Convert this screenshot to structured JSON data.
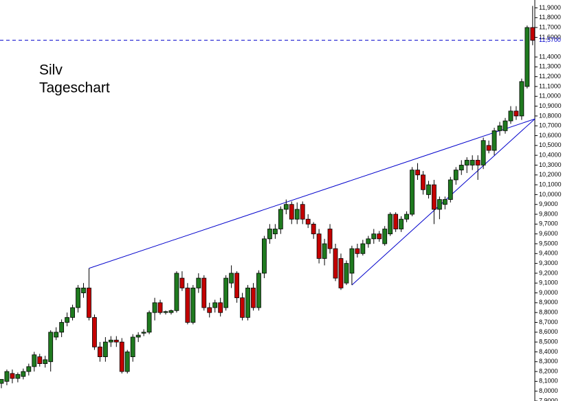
{
  "chart_data": {
    "type": "candlestick",
    "title": [
      "Silv",
      "Tageschart"
    ],
    "up_color": "#1f7a1f",
    "down_color": "#c40000",
    "line_color": "#0000cc",
    "xlim": [
      -0.25,
      97.4
    ],
    "ylim": [
      7.9,
      11.98
    ],
    "yticks": [
      {
        "value": 7.9,
        "label": "7,9000"
      },
      {
        "value": 8.0,
        "label": "8,0000"
      },
      {
        "value": 8.1,
        "label": "8,1000"
      },
      {
        "value": 8.2,
        "label": "8,2000"
      },
      {
        "value": 8.3,
        "label": "8,3000"
      },
      {
        "value": 8.4,
        "label": "8,4000"
      },
      {
        "value": 8.5,
        "label": "8,5000"
      },
      {
        "value": 8.6,
        "label": "8,6000"
      },
      {
        "value": 8.7,
        "label": "8,7000"
      },
      {
        "value": 8.8,
        "label": "8,8000"
      },
      {
        "value": 8.9,
        "label": "8,9000"
      },
      {
        "value": 9.0,
        "label": "9,0000"
      },
      {
        "value": 9.1,
        "label": "9,1000"
      },
      {
        "value": 9.2,
        "label": "9,2000"
      },
      {
        "value": 9.3,
        "label": "9,3000"
      },
      {
        "value": 9.4,
        "label": "9,4000"
      },
      {
        "value": 9.5,
        "label": "9,5000"
      },
      {
        "value": 9.6,
        "label": "9,6000"
      },
      {
        "value": 9.7,
        "label": "9,7000"
      },
      {
        "value": 9.8,
        "label": "9,8000"
      },
      {
        "value": 9.9,
        "label": "9,9000"
      },
      {
        "value": 10.0,
        "label": "10,0000"
      },
      {
        "value": 10.1,
        "label": "10,1000"
      },
      {
        "value": 10.2,
        "label": "10,2000"
      },
      {
        "value": 10.3,
        "label": "10,3000"
      },
      {
        "value": 10.4,
        "label": "10,4000"
      },
      {
        "value": 10.5,
        "label": "10,5000"
      },
      {
        "value": 10.6,
        "label": "10,6000"
      },
      {
        "value": 10.7,
        "label": "10,7000"
      },
      {
        "value": 10.8,
        "label": "10,8000"
      },
      {
        "value": 10.9,
        "label": "10,9000"
      },
      {
        "value": 11.0,
        "label": "11,0000"
      },
      {
        "value": 11.1,
        "label": "11,1000"
      },
      {
        "value": 11.2,
        "label": "11,2000"
      },
      {
        "value": 11.3,
        "label": "11,3000"
      },
      {
        "value": 11.4,
        "label": "11,4000"
      },
      {
        "value": 11.6,
        "label": "11,6000"
      },
      {
        "value": 11.7,
        "label": "11,7000"
      },
      {
        "value": 11.8,
        "label": "11,8000"
      },
      {
        "value": 11.9,
        "label": "11,9000"
      }
    ],
    "last_price": {
      "value": 11.57,
      "label": "11,5700"
    },
    "trendlines": [
      {
        "x": [
          16,
          97.4
        ],
        "y": [
          9.25,
          10.77
        ]
      },
      {
        "x": [
          64,
          97.4
        ],
        "y": [
          9.08,
          10.77
        ]
      }
    ],
    "candles": [
      {
        "open": 8.08,
        "high": 8.12,
        "low": 8.03,
        "close": 8.12
      },
      {
        "open": 8.1,
        "high": 8.22,
        "low": 8.06,
        "close": 8.2
      },
      {
        "open": 8.18,
        "high": 8.22,
        "low": 8.08,
        "close": 8.13
      },
      {
        "open": 8.13,
        "high": 8.19,
        "low": 8.09,
        "close": 8.17
      },
      {
        "open": 8.15,
        "high": 8.23,
        "low": 8.12,
        "close": 8.2
      },
      {
        "open": 8.2,
        "high": 8.28,
        "low": 8.16,
        "close": 8.25
      },
      {
        "open": 8.25,
        "high": 8.4,
        "low": 8.2,
        "close": 8.37
      },
      {
        "open": 8.35,
        "high": 8.38,
        "low": 8.25,
        "close": 8.28
      },
      {
        "open": 8.28,
        "high": 8.36,
        "low": 8.24,
        "close": 8.32
      },
      {
        "open": 8.3,
        "high": 8.62,
        "low": 8.2,
        "close": 8.6
      },
      {
        "open": 8.55,
        "high": 8.65,
        "low": 8.52,
        "close": 8.6
      },
      {
        "open": 8.6,
        "high": 8.73,
        "low": 8.55,
        "close": 8.7
      },
      {
        "open": 8.7,
        "high": 8.8,
        "low": 8.66,
        "close": 8.75
      },
      {
        "open": 8.75,
        "high": 8.88,
        "low": 8.72,
        "close": 8.85
      },
      {
        "open": 8.85,
        "high": 9.08,
        "low": 8.8,
        "close": 9.05
      },
      {
        "open": 9.0,
        "high": 9.1,
        "low": 8.95,
        "close": 9.05
      },
      {
        "open": 9.05,
        "high": 9.25,
        "low": 8.72,
        "close": 8.75
      },
      {
        "open": 8.75,
        "high": 8.78,
        "low": 8.42,
        "close": 8.45
      },
      {
        "open": 8.45,
        "high": 8.5,
        "low": 8.3,
        "close": 8.35
      },
      {
        "open": 8.35,
        "high": 8.55,
        "low": 8.3,
        "close": 8.5
      },
      {
        "open": 8.5,
        "high": 8.56,
        "low": 8.45,
        "close": 8.52
      },
      {
        "open": 8.52,
        "high": 8.56,
        "low": 8.45,
        "close": 8.5
      },
      {
        "open": 8.5,
        "high": 8.54,
        "low": 8.18,
        "close": 8.2
      },
      {
        "open": 8.2,
        "high": 8.42,
        "low": 8.18,
        "close": 8.4
      },
      {
        "open": 8.35,
        "high": 8.58,
        "low": 8.3,
        "close": 8.55
      },
      {
        "open": 8.55,
        "high": 8.6,
        "low": 8.5,
        "close": 8.57
      },
      {
        "open": 8.59,
        "high": 8.63,
        "low": 8.56,
        "close": 8.6
      },
      {
        "open": 8.6,
        "high": 8.82,
        "low": 8.58,
        "close": 8.8
      },
      {
        "open": 8.8,
        "high": 8.95,
        "low": 8.72,
        "close": 8.9
      },
      {
        "open": 8.9,
        "high": 8.93,
        "low": 8.78,
        "close": 8.8
      },
      {
        "open": 8.8,
        "high": 8.82,
        "low": 8.78,
        "close": 8.81
      },
      {
        "open": 8.8,
        "high": 8.83,
        "low": 8.78,
        "close": 8.82
      },
      {
        "open": 8.82,
        "high": 9.22,
        "low": 8.8,
        "close": 9.2
      },
      {
        "open": 9.15,
        "high": 9.22,
        "low": 9.02,
        "close": 9.05
      },
      {
        "open": 9.05,
        "high": 9.1,
        "low": 8.68,
        "close": 8.7
      },
      {
        "open": 8.7,
        "high": 9.08,
        "low": 8.68,
        "close": 9.05
      },
      {
        "open": 9.05,
        "high": 9.2,
        "low": 9.0,
        "close": 9.15
      },
      {
        "open": 9.15,
        "high": 9.18,
        "low": 8.82,
        "close": 8.85
      },
      {
        "open": 8.85,
        "high": 8.9,
        "low": 8.75,
        "close": 8.8
      },
      {
        "open": 8.85,
        "high": 8.93,
        "low": 8.8,
        "close": 8.9
      },
      {
        "open": 8.9,
        "high": 8.95,
        "low": 8.76,
        "close": 8.8
      },
      {
        "open": 8.85,
        "high": 9.18,
        "low": 8.82,
        "close": 9.15
      },
      {
        "open": 9.1,
        "high": 9.28,
        "low": 9.05,
        "close": 9.2
      },
      {
        "open": 9.2,
        "high": 9.22,
        "low": 8.9,
        "close": 8.95
      },
      {
        "open": 8.95,
        "high": 9.0,
        "low": 8.72,
        "close": 8.75
      },
      {
        "open": 8.75,
        "high": 9.08,
        "low": 8.72,
        "close": 9.05
      },
      {
        "open": 9.05,
        "high": 9.1,
        "low": 8.82,
        "close": 8.85
      },
      {
        "open": 8.85,
        "high": 9.23,
        "low": 8.82,
        "close": 9.2
      },
      {
        "open": 9.2,
        "high": 9.58,
        "low": 9.15,
        "close": 9.55
      },
      {
        "open": 9.55,
        "high": 9.7,
        "low": 9.5,
        "close": 9.65
      },
      {
        "open": 9.6,
        "high": 9.7,
        "low": 9.55,
        "close": 9.65
      },
      {
        "open": 9.65,
        "high": 9.88,
        "low": 9.6,
        "close": 9.85
      },
      {
        "open": 9.85,
        "high": 9.95,
        "low": 9.8,
        "close": 9.9
      },
      {
        "open": 9.9,
        "high": 9.93,
        "low": 9.7,
        "close": 9.75
      },
      {
        "open": 9.75,
        "high": 9.92,
        "low": 9.7,
        "close": 9.85
      },
      {
        "open": 9.9,
        "high": 9.93,
        "low": 9.7,
        "close": 9.75
      },
      {
        "open": 9.75,
        "high": 9.8,
        "low": 9.66,
        "close": 9.7
      },
      {
        "open": 9.7,
        "high": 9.72,
        "low": 9.55,
        "close": 9.6
      },
      {
        "open": 9.6,
        "high": 9.65,
        "low": 9.3,
        "close": 9.35
      },
      {
        "open": 9.35,
        "high": 9.55,
        "low": 9.28,
        "close": 9.5
      },
      {
        "open": 9.65,
        "high": 9.7,
        "low": 9.4,
        "close": 9.45
      },
      {
        "open": 9.45,
        "high": 9.5,
        "low": 9.12,
        "close": 9.15
      },
      {
        "open": 9.35,
        "high": 9.4,
        "low": 9.03,
        "close": 9.05
      },
      {
        "open": 9.1,
        "high": 9.33,
        "low": 9.08,
        "close": 9.3
      },
      {
        "open": 9.2,
        "high": 9.48,
        "low": 9.08,
        "close": 9.45
      },
      {
        "open": 9.45,
        "high": 9.5,
        "low": 9.36,
        "close": 9.4
      },
      {
        "open": 9.4,
        "high": 9.54,
        "low": 9.38,
        "close": 9.5
      },
      {
        "open": 9.5,
        "high": 9.58,
        "low": 9.46,
        "close": 9.55
      },
      {
        "open": 9.55,
        "high": 9.65,
        "low": 9.5,
        "close": 9.6
      },
      {
        "open": 9.6,
        "high": 9.63,
        "low": 9.52,
        "close": 9.55
      },
      {
        "open": 9.5,
        "high": 9.68,
        "low": 9.48,
        "close": 9.65
      },
      {
        "open": 9.6,
        "high": 9.82,
        "low": 9.58,
        "close": 9.8
      },
      {
        "open": 9.8,
        "high": 9.82,
        "low": 9.62,
        "close": 9.65
      },
      {
        "open": 9.65,
        "high": 9.78,
        "low": 9.62,
        "close": 9.75
      },
      {
        "open": 9.75,
        "high": 9.83,
        "low": 9.72,
        "close": 9.8
      },
      {
        "open": 9.8,
        "high": 10.28,
        "low": 9.78,
        "close": 10.25
      },
      {
        "open": 10.25,
        "high": 10.32,
        "low": 10.15,
        "close": 10.2
      },
      {
        "open": 10.2,
        "high": 10.24,
        "low": 10.0,
        "close": 10.05
      },
      {
        "open": 10.0,
        "high": 10.14,
        "low": 9.96,
        "close": 10.1
      },
      {
        "open": 10.1,
        "high": 10.15,
        "low": 9.7,
        "close": 9.85
      },
      {
        "open": 9.85,
        "high": 9.98,
        "low": 9.75,
        "close": 9.95
      },
      {
        "open": 9.9,
        "high": 9.98,
        "low": 9.85,
        "close": 9.95
      },
      {
        "open": 9.95,
        "high": 10.18,
        "low": 9.92,
        "close": 10.15
      },
      {
        "open": 10.15,
        "high": 10.28,
        "low": 10.1,
        "close": 10.25
      },
      {
        "open": 10.25,
        "high": 10.35,
        "low": 10.2,
        "close": 10.3
      },
      {
        "open": 10.3,
        "high": 10.38,
        "low": 10.22,
        "close": 10.35
      },
      {
        "open": 10.3,
        "high": 10.4,
        "low": 10.25,
        "close": 10.35
      },
      {
        "open": 10.35,
        "high": 10.4,
        "low": 10.15,
        "close": 10.3
      },
      {
        "open": 10.3,
        "high": 10.58,
        "low": 10.26,
        "close": 10.55
      },
      {
        "open": 10.5,
        "high": 10.55,
        "low": 10.42,
        "close": 10.45
      },
      {
        "open": 10.45,
        "high": 10.68,
        "low": 10.4,
        "close": 10.65
      },
      {
        "open": 10.65,
        "high": 10.74,
        "low": 10.6,
        "close": 10.7
      },
      {
        "open": 10.65,
        "high": 10.78,
        "low": 10.62,
        "close": 10.75
      },
      {
        "open": 10.75,
        "high": 10.9,
        "low": 10.72,
        "close": 10.85
      },
      {
        "open": 10.85,
        "high": 10.9,
        "low": 10.76,
        "close": 10.8
      },
      {
        "open": 10.8,
        "high": 11.18,
        "low": 10.76,
        "close": 11.15
      },
      {
        "open": 11.1,
        "high": 11.72,
        "low": 11.08,
        "close": 11.7
      },
      {
        "open": 11.7,
        "high": 11.92,
        "low": 11.52,
        "close": 11.57
      }
    ]
  }
}
